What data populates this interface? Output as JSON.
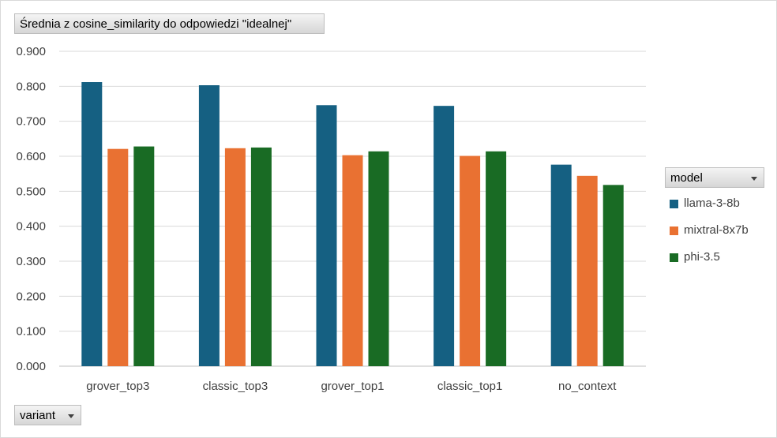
{
  "chart_data": {
    "type": "bar",
    "title": "Średnia z cosine_similarity do odpowiedzi \"idealnej\"",
    "x_field_label": "variant",
    "legend_title": "model",
    "legend_position": "right",
    "grid": true,
    "categories": [
      "grover_top3",
      "classic_top3",
      "grover_top1",
      "classic_top1",
      "no_context"
    ],
    "y_ticks": [
      "0.000",
      "0.100",
      "0.200",
      "0.300",
      "0.400",
      "0.500",
      "0.600",
      "0.700",
      "0.800",
      "0.900"
    ],
    "ylim": [
      0,
      0.9
    ],
    "series": [
      {
        "name": "llama-3-8b",
        "color": "#156082",
        "values": [
          0.812,
          0.803,
          0.746,
          0.744,
          0.576
        ]
      },
      {
        "name": "mixtral-8x7b",
        "color": "#e97132",
        "values": [
          0.621,
          0.623,
          0.603,
          0.601,
          0.544
        ]
      },
      {
        "name": "phi-3.5",
        "color": "#196b24",
        "values": [
          0.628,
          0.625,
          0.614,
          0.614,
          0.518
        ]
      }
    ]
  }
}
